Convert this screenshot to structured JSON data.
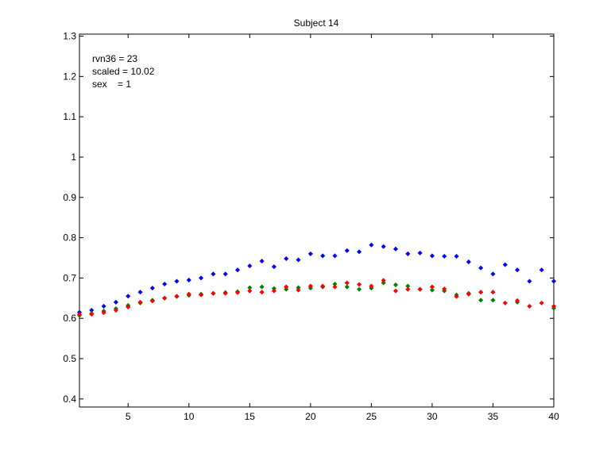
{
  "chart_data": {
    "type": "scatter",
    "title": "Subject 14",
    "xlabel": "",
    "ylabel": "",
    "xlim": [
      1,
      40
    ],
    "ylim": [
      0.38,
      1.305
    ],
    "xticks": [
      5,
      10,
      15,
      20,
      25,
      30,
      35,
      40
    ],
    "yticks": [
      0.4,
      0.5,
      0.6,
      0.7,
      0.8,
      0.9,
      1,
      1.1,
      1.2,
      1.3
    ],
    "xtick_labels": [
      "5",
      "10",
      "15",
      "20",
      "25",
      "30",
      "35",
      "40"
    ],
    "ytick_labels": [
      "0.4",
      "0.5",
      "0.6",
      "0.7",
      "0.8",
      "0.9",
      "1",
      "1.1",
      "1.2",
      "1.3"
    ],
    "grid": false,
    "legend": null,
    "annotation": [
      "rvn36 = 23",
      "scaled = 10.02",
      "sex    = 1"
    ],
    "x": [
      1,
      2,
      3,
      4,
      5,
      6,
      7,
      8,
      9,
      10,
      11,
      12,
      13,
      14,
      15,
      16,
      17,
      18,
      19,
      20,
      21,
      22,
      23,
      24,
      25,
      26,
      27,
      28,
      29,
      30,
      31,
      32,
      33,
      34,
      35,
      36,
      37,
      38,
      39,
      40
    ],
    "series": [
      {
        "color": "#0000ff",
        "values": [
          0.615,
          0.62,
          0.63,
          0.64,
          0.655,
          0.665,
          0.675,
          0.685,
          0.692,
          0.695,
          0.7,
          0.71,
          0.71,
          0.72,
          0.73,
          0.742,
          0.728,
          0.748,
          0.745,
          0.76,
          0.755,
          0.755,
          0.768,
          0.765,
          0.782,
          0.778,
          0.772,
          0.76,
          0.762,
          0.755,
          0.754,
          0.754,
          0.74,
          0.725,
          0.71,
          0.733,
          0.72,
          0.692,
          0.72,
          0.692
        ]
      },
      {
        "color": "#008000",
        "values": [
          0.607,
          0.612,
          0.618,
          0.624,
          0.632,
          0.638,
          0.645,
          0.65,
          0.654,
          0.657,
          0.66,
          0.662,
          0.664,
          0.666,
          0.676,
          0.678,
          0.674,
          0.672,
          0.676,
          0.675,
          0.678,
          0.685,
          0.678,
          0.672,
          0.675,
          0.688,
          0.683,
          0.68,
          0.672,
          0.67,
          0.668,
          0.658,
          0.662,
          0.645,
          0.645,
          null,
          0.64,
          null,
          null,
          0.625
        ]
      },
      {
        "color": "#ff0000",
        "values": [
          0.61,
          0.61,
          0.614,
          0.62,
          0.628,
          0.64,
          0.643,
          0.65,
          0.655,
          0.66,
          0.658,
          0.662,
          0.662,
          0.664,
          0.668,
          0.665,
          0.668,
          0.678,
          0.67,
          0.68,
          0.68,
          0.678,
          0.688,
          0.684,
          0.68,
          0.694,
          0.668,
          0.672,
          0.672,
          0.678,
          0.673,
          0.654,
          0.66,
          0.665,
          0.665,
          0.638,
          0.644,
          0.63,
          0.638,
          0.63
        ]
      }
    ]
  }
}
